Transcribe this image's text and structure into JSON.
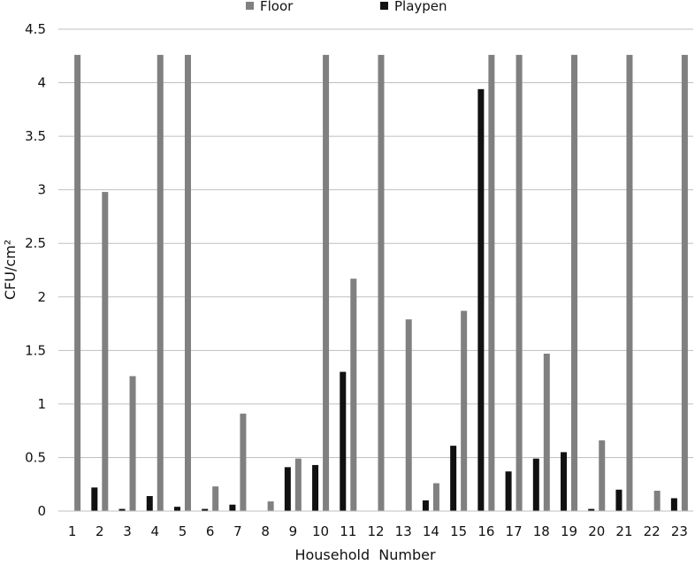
{
  "chart_data": {
    "type": "bar",
    "title": "",
    "xlabel": "Household  Number",
    "ylabel": "CFU/cm²",
    "ylim": [
      0,
      4.5
    ],
    "y_ticks": [
      "0",
      "0.5",
      "1",
      "1.5",
      "2",
      "2.5",
      "3",
      "3.5",
      "4",
      "4.5"
    ],
    "categories": [
      "1",
      "2",
      "3",
      "4",
      "5",
      "6",
      "7",
      "8",
      "9",
      "10",
      "11",
      "12",
      "13",
      "14",
      "15",
      "16",
      "17",
      "18",
      "19",
      "20",
      "21",
      "22",
      "23"
    ],
    "series": [
      {
        "name": "Playpen",
        "color": "#111111",
        "values": [
          0,
          0.22,
          0.02,
          0.14,
          0.04,
          0.02,
          0.06,
          0,
          0.41,
          0.43,
          1.3,
          0,
          0,
          0.1,
          0.61,
          3.94,
          0.37,
          0.49,
          0.55,
          0.02,
          0.2,
          0,
          0.12
        ]
      },
      {
        "name": "Floor",
        "color": "#808080",
        "values": [
          4.26,
          2.98,
          1.26,
          4.26,
          4.26,
          0.23,
          0.91,
          0.09,
          0.49,
          4.26,
          2.17,
          4.26,
          1.79,
          0.26,
          1.87,
          4.26,
          4.26,
          1.47,
          4.26,
          0.66,
          4.26,
          0.19,
          4.26
        ]
      }
    ],
    "grid": true,
    "legend": "top-center",
    "legend_order": [
      "Floor",
      "Playpen"
    ]
  }
}
